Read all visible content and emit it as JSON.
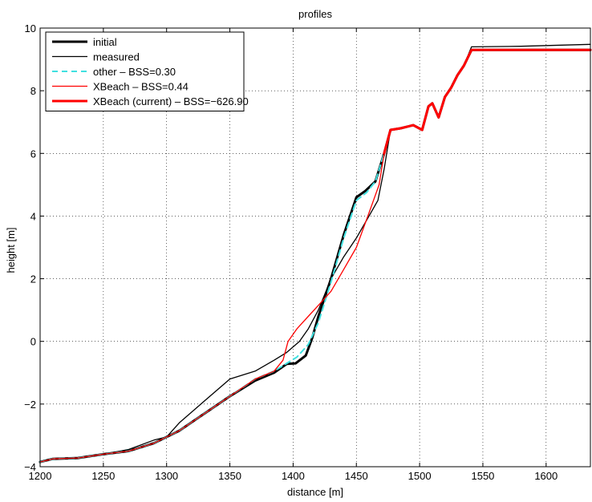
{
  "chart_data": {
    "type": "line",
    "title": "profiles",
    "xlabel": "distance [m]",
    "ylabel": "height [m]",
    "xlim": [
      1200,
      1635
    ],
    "ylim": [
      -4,
      10
    ],
    "grid": true,
    "legend_position": "top-left",
    "xticks": [
      1200,
      1250,
      1300,
      1350,
      1400,
      1450,
      1500,
      1550,
      1600
    ],
    "yticks": [
      -4,
      -2,
      0,
      2,
      4,
      6,
      8,
      10
    ],
    "series": [
      {
        "name": "initial",
        "color": "#000000",
        "style": "solid-thick",
        "x": [
          1200,
          1210,
          1230,
          1250,
          1270,
          1290,
          1310,
          1330,
          1350,
          1370,
          1385,
          1395,
          1402,
          1410,
          1415,
          1420,
          1430,
          1440,
          1450,
          1457,
          1465,
          1472,
          1477,
          1485,
          1495,
          1502,
          1507,
          1510,
          1515,
          1520,
          1525,
          1530,
          1535,
          1541,
          1580,
          1635
        ],
        "y": [
          -3.85,
          -3.75,
          -3.72,
          -3.6,
          -3.5,
          -3.25,
          -2.85,
          -2.3,
          -1.75,
          -1.25,
          -1.0,
          -0.72,
          -0.7,
          -0.45,
          0.1,
          0.8,
          2.0,
          3.4,
          4.6,
          4.8,
          5.1,
          6.0,
          6.75,
          6.8,
          6.9,
          6.75,
          7.5,
          7.6,
          7.15,
          7.8,
          8.1,
          8.5,
          8.8,
          9.3,
          9.3,
          9.3
        ]
      },
      {
        "name": "measured",
        "color": "#000000",
        "style": "solid-thin",
        "x": [
          1200,
          1210,
          1230,
          1250,
          1270,
          1290,
          1300,
          1310,
          1330,
          1350,
          1370,
          1385,
          1395,
          1405,
          1412,
          1420,
          1430,
          1440,
          1450,
          1460,
          1467,
          1472,
          1477,
          1485,
          1495,
          1502,
          1507,
          1510,
          1515,
          1520,
          1525,
          1530,
          1535,
          1541,
          1580,
          1635
        ],
        "y": [
          -3.85,
          -3.75,
          -3.72,
          -3.6,
          -3.45,
          -3.15,
          -3.05,
          -2.6,
          -1.9,
          -1.2,
          -0.95,
          -0.6,
          -0.35,
          0.0,
          0.4,
          1.0,
          2.0,
          2.7,
          3.3,
          4.0,
          4.5,
          5.5,
          6.75,
          6.8,
          6.9,
          6.75,
          7.5,
          7.6,
          7.15,
          7.8,
          8.1,
          8.5,
          8.8,
          9.4,
          9.42,
          9.48
        ]
      },
      {
        "name": "other – BSS=0.30",
        "color": "#40e0e0",
        "style": "dashed",
        "x": [
          1200,
          1210,
          1230,
          1250,
          1270,
          1290,
          1310,
          1330,
          1350,
          1370,
          1385,
          1395,
          1403,
          1412,
          1420,
          1430,
          1440,
          1450,
          1458,
          1465,
          1472,
          1477,
          1485,
          1495,
          1502,
          1507,
          1510,
          1515,
          1520,
          1525,
          1530,
          1535,
          1541,
          1580,
          1635
        ],
        "y": [
          -3.85,
          -3.75,
          -3.72,
          -3.6,
          -3.5,
          -3.25,
          -2.85,
          -2.3,
          -1.75,
          -1.2,
          -0.95,
          -0.7,
          -0.5,
          -0.1,
          0.6,
          1.9,
          3.3,
          4.5,
          4.75,
          5.1,
          6.0,
          6.75,
          6.8,
          6.9,
          6.75,
          7.5,
          7.6,
          7.15,
          7.8,
          8.1,
          8.5,
          8.8,
          9.3,
          9.3,
          9.3
        ]
      },
      {
        "name": "XBeach – BSS=0.44",
        "color": "#ff0000",
        "style": "solid-thin",
        "x": [
          1200,
          1210,
          1230,
          1250,
          1270,
          1290,
          1310,
          1330,
          1350,
          1370,
          1385,
          1392,
          1396,
          1403,
          1412,
          1420,
          1430,
          1440,
          1450,
          1460,
          1468,
          1472,
          1477,
          1485,
          1495,
          1502,
          1507,
          1510,
          1515,
          1520,
          1525,
          1530,
          1535,
          1541,
          1580,
          1635
        ],
        "y": [
          -3.85,
          -3.75,
          -3.72,
          -3.6,
          -3.5,
          -3.25,
          -2.85,
          -2.3,
          -1.75,
          -1.2,
          -0.95,
          -0.6,
          0.0,
          0.4,
          0.8,
          1.15,
          1.6,
          2.3,
          3.0,
          4.1,
          5.0,
          6.0,
          6.75,
          6.8,
          6.9,
          6.75,
          7.5,
          7.6,
          7.15,
          7.8,
          8.1,
          8.5,
          8.8,
          9.3,
          9.3,
          9.3
        ]
      },
      {
        "name": "XBeach (current) – BSS=−626.90",
        "color": "#ff0000",
        "style": "solid-thick",
        "x": [
          1472,
          1477,
          1485,
          1495,
          1502,
          1507,
          1510,
          1515,
          1520,
          1525,
          1530,
          1535,
          1541,
          1580,
          1635
        ],
        "y": [
          6.0,
          6.75,
          6.8,
          6.9,
          6.75,
          7.5,
          7.6,
          7.15,
          7.8,
          8.1,
          8.5,
          8.8,
          9.3,
          9.3,
          9.3
        ]
      }
    ]
  }
}
